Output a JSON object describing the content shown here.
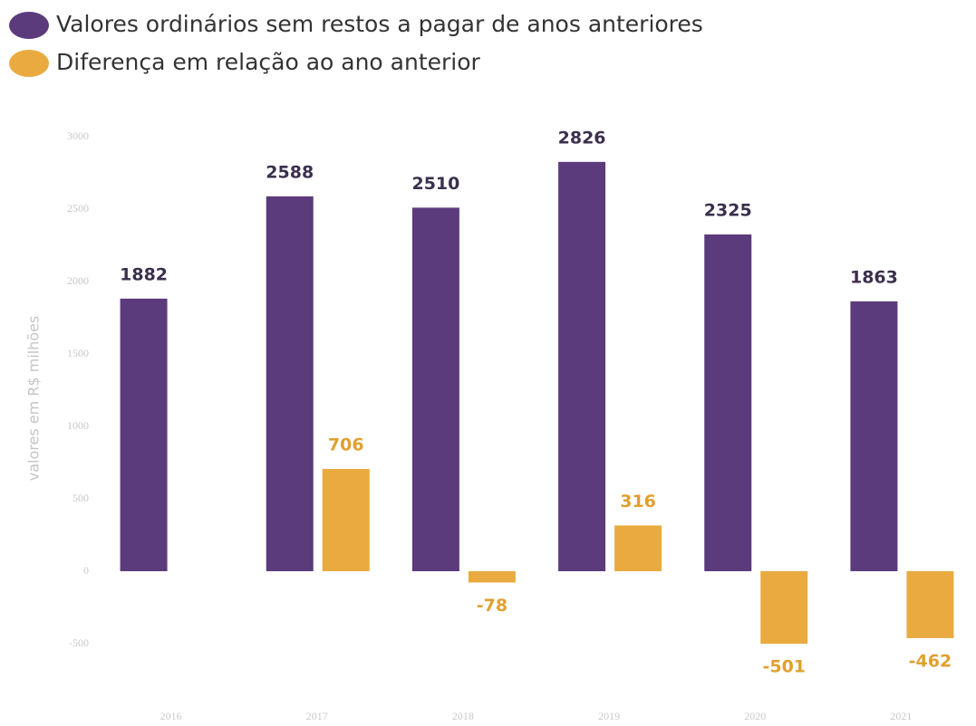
{
  "chart_data": {
    "type": "bar",
    "categories": [
      "2016",
      "2017",
      "2018",
      "2019",
      "2020",
      "2021"
    ],
    "series": [
      {
        "name": "Valores ordinários sem restos a pagar de anos anteriores",
        "color": "#5c3b7c",
        "label_color": "#3b2f4d",
        "values": [
          1882,
          2588,
          2510,
          2826,
          2325,
          1863
        ]
      },
      {
        "name": "Diferença em relação ao ano anterior",
        "color": "#e9aa3f",
        "label_color": "#e0a030",
        "values": [
          null,
          706,
          -78,
          316,
          -501,
          -462
        ]
      }
    ],
    "ylabel": "valores em R$ milhões",
    "ylim": [
      -850,
      3000
    ],
    "yticks": [
      -500,
      0,
      500,
      1000,
      1500,
      2000,
      2500,
      3000
    ],
    "grid": false,
    "legend": "top-left"
  }
}
